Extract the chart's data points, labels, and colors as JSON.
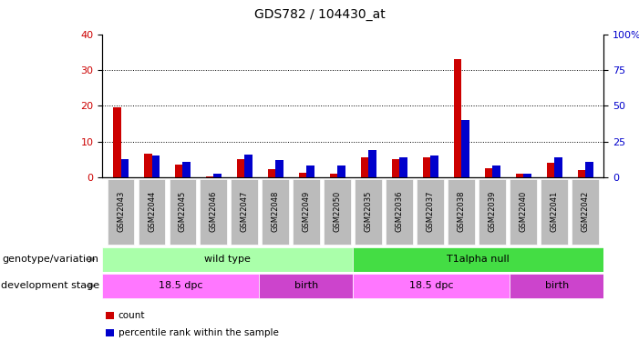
{
  "title": "GDS782 / 104430_at",
  "samples": [
    "GSM22043",
    "GSM22044",
    "GSM22045",
    "GSM22046",
    "GSM22047",
    "GSM22048",
    "GSM22049",
    "GSM22050",
    "GSM22035",
    "GSM22036",
    "GSM22037",
    "GSM22038",
    "GSM22039",
    "GSM22040",
    "GSM22041",
    "GSM22042"
  ],
  "count_values": [
    19.5,
    6.5,
    3.5,
    0.3,
    5.0,
    2.2,
    1.2,
    1.0,
    5.5,
    5.0,
    5.5,
    33.0,
    2.5,
    1.0,
    4.0,
    2.0
  ],
  "percentile_values": [
    12.5,
    15.0,
    11.0,
    2.5,
    16.0,
    12.0,
    8.0,
    8.0,
    19.0,
    14.0,
    15.0,
    40.0,
    8.5,
    2.5,
    14.0,
    11.0
  ],
  "ylim_left": [
    0,
    40
  ],
  "ylim_right": [
    0,
    100
  ],
  "yticks_left": [
    0,
    10,
    20,
    30,
    40
  ],
  "yticks_right": [
    0,
    25,
    50,
    75,
    100
  ],
  "bar_width": 0.25,
  "count_color": "#cc0000",
  "percentile_color": "#0000cc",
  "bg_color": "#ffffff",
  "plot_bg_color": "#ffffff",
  "grid_color": "#000000",
  "tick_label_bg": "#bbbbbb",
  "genotype_labels": [
    {
      "text": "wild type",
      "start": 0,
      "end": 8,
      "color": "#aaffaa"
    },
    {
      "text": "T1alpha null",
      "start": 8,
      "end": 16,
      "color": "#44dd44"
    }
  ],
  "stage_labels": [
    {
      "text": "18.5 dpc",
      "start": 0,
      "end": 5,
      "color": "#ff77ff"
    },
    {
      "text": "birth",
      "start": 5,
      "end": 8,
      "color": "#cc44cc"
    },
    {
      "text": "18.5 dpc",
      "start": 8,
      "end": 13,
      "color": "#ff77ff"
    },
    {
      "text": "birth",
      "start": 13,
      "end": 16,
      "color": "#cc44cc"
    }
  ],
  "legend_items": [
    {
      "label": "count",
      "color": "#cc0000"
    },
    {
      "label": "percentile rank within the sample",
      "color": "#0000cc"
    }
  ],
  "genotype_row_label": "genotype/variation",
  "stage_row_label": "development stage",
  "title_fontsize": 10,
  "axis_fontsize": 8,
  "label_fontsize": 8
}
